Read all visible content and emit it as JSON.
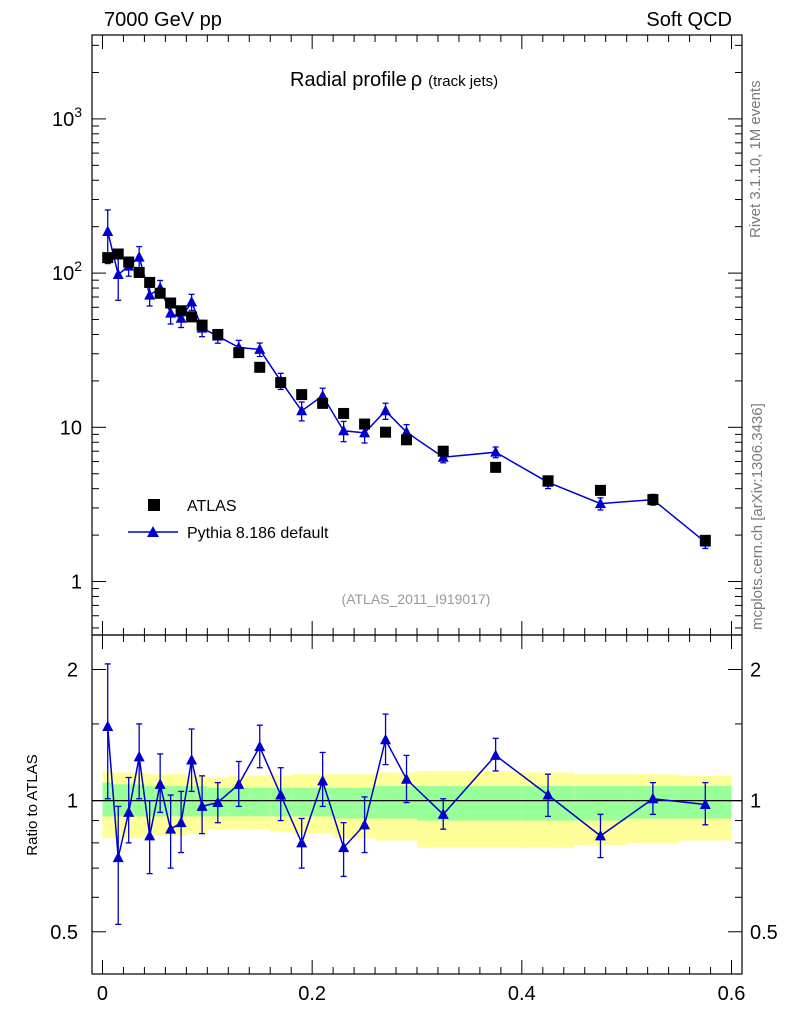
{
  "header": {
    "left": "7000 GeV pp",
    "right": "Soft QCD"
  },
  "side_labels": {
    "rivet": "Rivet 3.1.10,  1M events",
    "mcplots": "mcplots.cern.ch [arXiv:1306.3436]"
  },
  "colors": {
    "mc_line": "#0000cc",
    "data_marker": "#000000",
    "band_inner": "#99ff99",
    "band_outer": "#ffff99",
    "watermark": "#999999"
  },
  "chart_data": [
    {
      "type": "scatter",
      "panel": "main",
      "title": "Radial profile",
      "title_symbol": "ρ",
      "title_suffix": "(track jets)",
      "xlabel": "",
      "ylabel": "",
      "xlim": [
        -0.01,
        0.61
      ],
      "ylim": [
        0.45,
        3500
      ],
      "yscale": "log",
      "y_ticks": [
        {
          "value": 1,
          "label": "1"
        },
        {
          "value": 10,
          "label": "10"
        },
        {
          "value": 100,
          "label": "10",
          "exp": "2"
        },
        {
          "value": 1000,
          "label": "10",
          "exp": "3"
        }
      ],
      "watermark": "(ATLAS_2011_I919017)",
      "legend_position": "left",
      "series": [
        {
          "name": "ATLAS",
          "marker": "square",
          "x": [
            0.005,
            0.015,
            0.025,
            0.035,
            0.045,
            0.055,
            0.065,
            0.075,
            0.085,
            0.095,
            0.11,
            0.13,
            0.15,
            0.17,
            0.19,
            0.21,
            0.23,
            0.25,
            0.27,
            0.29,
            0.325,
            0.375,
            0.425,
            0.475,
            0.525,
            0.575
          ],
          "y": [
            126,
            133,
            118,
            101,
            87,
            74,
            64,
            57,
            52,
            46,
            40,
            30.5,
            24.5,
            19.5,
            16.3,
            14.3,
            12.3,
            10.5,
            9.3,
            8.3,
            7.0,
            5.5,
            4.5,
            3.9,
            3.4,
            1.85
          ]
        },
        {
          "name": "Pythia 8.186 default",
          "marker": "triangle",
          "x": [
            0.005,
            0.015,
            0.025,
            0.035,
            0.045,
            0.055,
            0.065,
            0.075,
            0.085,
            0.095,
            0.11,
            0.13,
            0.15,
            0.17,
            0.19,
            0.21,
            0.23,
            0.25,
            0.27,
            0.29,
            0.325,
            0.375,
            0.425,
            0.475,
            0.525,
            0.575
          ],
          "y": [
            186,
            98,
            111,
            127,
            72,
            80,
            55,
            51,
            65,
            44,
            39,
            33,
            32,
            20,
            12.8,
            16,
            9.5,
            9.2,
            12.8,
            9.3,
            6.4,
            6.9,
            4.4,
            3.2,
            3.4,
            1.8
          ],
          "err": [
            0.38,
            0.32,
            0.14,
            0.17,
            0.15,
            0.12,
            0.15,
            0.13,
            0.12,
            0.12,
            0.1,
            0.11,
            0.1,
            0.12,
            0.14,
            0.12,
            0.15,
            0.14,
            0.12,
            0.12,
            0.08,
            0.08,
            0.09,
            0.09,
            0.08,
            0.09
          ]
        }
      ]
    },
    {
      "type": "scatter",
      "panel": "ratio",
      "xlabel": "",
      "ylabel": "Ratio to ATLAS",
      "xlim": [
        -0.01,
        0.61
      ],
      "ylim": [
        0.4,
        2.4
      ],
      "yscale": "log",
      "y_ticks": [
        {
          "value": 0.5,
          "label": "0.5"
        },
        {
          "value": 1,
          "label": "1"
        },
        {
          "value": 2,
          "label": "2"
        }
      ],
      "x_ticks": [
        {
          "value": 0,
          "label": "0"
        },
        {
          "value": 0.2,
          "label": "0.2"
        },
        {
          "value": 0.4,
          "label": "0.4"
        },
        {
          "value": 0.6,
          "label": "0.6"
        }
      ],
      "reference_line": 1,
      "uncertainty_band": {
        "x_edges": [
          0,
          0.01,
          0.02,
          0.03,
          0.04,
          0.05,
          0.06,
          0.07,
          0.08,
          0.09,
          0.1,
          0.12,
          0.14,
          0.16,
          0.18,
          0.2,
          0.22,
          0.24,
          0.26,
          0.28,
          0.3,
          0.35,
          0.4,
          0.45,
          0.5,
          0.55,
          0.6
        ],
        "inner_lo": [
          0.92,
          0.92,
          0.92,
          0.92,
          0.92,
          0.92,
          0.92,
          0.92,
          0.92,
          0.92,
          0.92,
          0.92,
          0.92,
          0.92,
          0.92,
          0.92,
          0.91,
          0.91,
          0.91,
          0.91,
          0.9,
          0.9,
          0.9,
          0.9,
          0.91,
          0.91
        ],
        "inner_hi": [
          1.1,
          1.09,
          1.09,
          1.09,
          1.08,
          1.08,
          1.08,
          1.08,
          1.08,
          1.08,
          1.07,
          1.07,
          1.07,
          1.07,
          1.07,
          1.07,
          1.07,
          1.07,
          1.08,
          1.08,
          1.08,
          1.08,
          1.08,
          1.08,
          1.08,
          1.08
        ],
        "outer_lo": [
          0.82,
          0.82,
          0.82,
          0.82,
          0.83,
          0.83,
          0.83,
          0.83,
          0.84,
          0.84,
          0.86,
          0.86,
          0.86,
          0.85,
          0.84,
          0.84,
          0.82,
          0.82,
          0.81,
          0.81,
          0.78,
          0.78,
          0.78,
          0.79,
          0.8,
          0.81
        ],
        "outer_hi": [
          1.17,
          1.16,
          1.16,
          1.16,
          1.15,
          1.15,
          1.15,
          1.15,
          1.14,
          1.14,
          1.13,
          1.14,
          1.14,
          1.14,
          1.15,
          1.15,
          1.15,
          1.15,
          1.16,
          1.16,
          1.17,
          1.17,
          1.16,
          1.15,
          1.15,
          1.14
        ]
      },
      "series": [
        {
          "name": "Pythia 8.186 default / ATLAS",
          "marker": "triangle",
          "x": [
            0.005,
            0.015,
            0.025,
            0.035,
            0.045,
            0.055,
            0.065,
            0.075,
            0.085,
            0.095,
            0.11,
            0.13,
            0.15,
            0.17,
            0.19,
            0.21,
            0.23,
            0.25,
            0.27,
            0.29,
            0.325,
            0.375,
            0.425,
            0.475,
            0.525,
            0.575
          ],
          "y": [
            1.48,
            0.74,
            0.94,
            1.26,
            0.83,
            1.09,
            0.86,
            0.89,
            1.24,
            0.97,
            0.99,
            1.09,
            1.33,
            1.03,
            0.8,
            1.11,
            0.78,
            0.88,
            1.38,
            1.12,
            0.93,
            1.27,
            1.03,
            0.83,
            1.01,
            0.98
          ],
          "y_lo": [
            1.01,
            0.52,
            0.8,
            1.01,
            0.68,
            0.94,
            0.7,
            0.76,
            1.05,
            0.84,
            0.89,
            0.97,
            1.19,
            0.9,
            0.7,
            0.97,
            0.67,
            0.76,
            1.21,
            0.99,
            0.86,
            1.17,
            0.92,
            0.74,
            0.93,
            0.88
          ],
          "y_hi": [
            2.06,
            0.97,
            1.13,
            1.5,
            1.0,
            1.28,
            1.03,
            1.05,
            1.46,
            1.14,
            1.1,
            1.23,
            1.49,
            1.19,
            0.91,
            1.29,
            0.89,
            1.02,
            1.58,
            1.27,
            1.01,
            1.39,
            1.15,
            0.93,
            1.1,
            1.1
          ]
        }
      ]
    }
  ]
}
